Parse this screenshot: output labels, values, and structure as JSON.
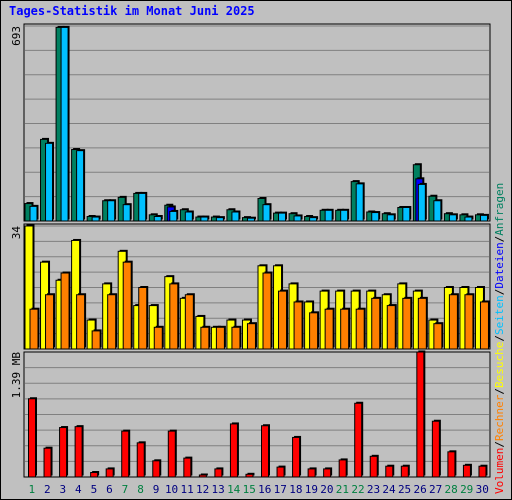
{
  "title": "Tages-Statistik im Monat Juni 2025",
  "chart_data": [
    {
      "type": "bar",
      "panel": "top",
      "ylabel_max": "693",
      "ylim": [
        0,
        693
      ],
      "categories": [
        "1",
        "2",
        "3",
        "4",
        "5",
        "6",
        "7",
        "8",
        "9",
        "10",
        "11",
        "12",
        "13",
        "14",
        "15",
        "16",
        "17",
        "18",
        "19",
        "20",
        "21",
        "22",
        "23",
        "24",
        "25",
        "26",
        "27",
        "28",
        "29",
        "30"
      ],
      "weekend_days": [
        "1",
        "7",
        "8",
        "14",
        "15",
        "21",
        "22",
        "28",
        "29"
      ],
      "series": [
        {
          "name": "Anfragen",
          "color": "#008060",
          "values": [
            62,
            290,
            688,
            254,
            16,
            72,
            84,
            98,
            22,
            56,
            40,
            14,
            14,
            40,
            12,
            80,
            28,
            26,
            16,
            38,
            38,
            140,
            32,
            26,
            48,
            200,
            88,
            26,
            22,
            22
          ]
        },
        {
          "name": "Dateien",
          "color": "#0000ff",
          "values": [
            0,
            0,
            0,
            0,
            0,
            0,
            0,
            0,
            0,
            50,
            0,
            0,
            0,
            0,
            0,
            0,
            0,
            0,
            0,
            0,
            0,
            0,
            0,
            0,
            0,
            150,
            0,
            0,
            0,
            0
          ]
        },
        {
          "name": "Seiten",
          "color": "#00c0ff",
          "values": [
            52,
            276,
            688,
            250,
            14,
            72,
            58,
            98,
            16,
            34,
            32,
            14,
            12,
            32,
            10,
            58,
            28,
            18,
            12,
            38,
            38,
            132,
            30,
            22,
            48,
            130,
            72,
            22,
            14,
            20
          ]
        }
      ],
      "legend_placement": "right"
    },
    {
      "type": "bar",
      "panel": "middle",
      "ylabel_max": "34",
      "ylim": [
        0,
        34
      ],
      "categories": [
        "1",
        "2",
        "3",
        "4",
        "5",
        "6",
        "7",
        "8",
        "9",
        "10",
        "11",
        "12",
        "13",
        "14",
        "15",
        "16",
        "17",
        "18",
        "19",
        "20",
        "21",
        "22",
        "23",
        "24",
        "25",
        "26",
        "27",
        "28",
        "29",
        "30"
      ],
      "series": [
        {
          "name": "Besuche",
          "color": "#ffff00",
          "values": [
            34,
            24,
            19,
            30,
            8,
            18,
            27,
            12,
            12,
            20,
            14,
            9,
            6,
            8,
            8,
            23,
            23,
            18,
            13,
            16,
            16,
            16,
            16,
            15,
            18,
            16,
            8,
            17,
            17,
            17
          ]
        },
        {
          "name": "Rechner",
          "color": "#ff8000",
          "values": [
            11,
            15,
            21,
            15,
            5,
            15,
            24,
            17,
            6,
            18,
            15,
            6,
            6,
            6,
            7,
            21,
            16,
            13,
            10,
            11,
            11,
            11,
            14,
            12,
            14,
            14,
            7,
            15,
            15,
            13
          ]
        }
      ],
      "legend_placement": "right"
    },
    {
      "type": "bar",
      "panel": "bottom",
      "ylabel_max": "1.39 MB",
      "ylim": [
        0,
        1.39
      ],
      "unit": "MB",
      "categories": [
        "1",
        "2",
        "3",
        "4",
        "5",
        "6",
        "7",
        "8",
        "9",
        "10",
        "11",
        "12",
        "13",
        "14",
        "15",
        "16",
        "17",
        "18",
        "19",
        "20",
        "21",
        "22",
        "23",
        "24",
        "25",
        "26",
        "27",
        "28",
        "29",
        "30"
      ],
      "series": [
        {
          "name": "Volumen",
          "color": "#ff0000",
          "values": [
            0.87,
            0.32,
            0.55,
            0.56,
            0.05,
            0.09,
            0.51,
            0.38,
            0.18,
            0.51,
            0.21,
            0.02,
            0.09,
            0.59,
            0.03,
            0.57,
            0.11,
            0.44,
            0.09,
            0.09,
            0.19,
            0.82,
            0.23,
            0.12,
            0.12,
            1.39,
            0.62,
            0.28,
            0.13,
            0.12
          ]
        }
      ],
      "legend_placement": "right"
    }
  ],
  "legend": {
    "top": [
      "Anfragen",
      "/",
      "Dateien",
      "/",
      "Seiten",
      "/",
      "Besuche",
      "/",
      "Rechner",
      "/",
      "Volumen"
    ]
  },
  "colors": {
    "weekday_label": "#000080",
    "weekend_label": "#008040",
    "title": "#0000ff"
  }
}
